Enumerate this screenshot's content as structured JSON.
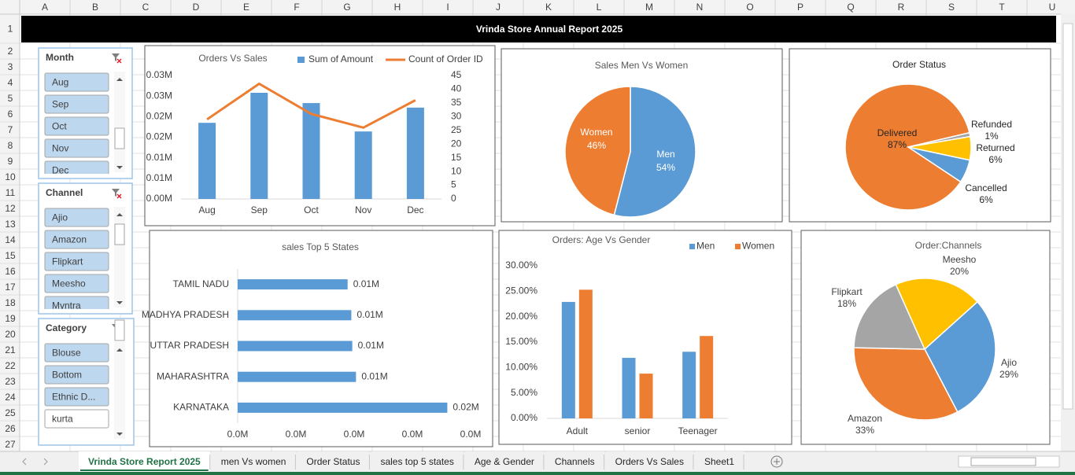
{
  "columns": [
    "A",
    "B",
    "C",
    "D",
    "E",
    "F",
    "G",
    "H",
    "I",
    "J",
    "K",
    "L",
    "M",
    "N",
    "O",
    "P",
    "Q",
    "R",
    "S",
    "T",
    "U"
  ],
  "rows": [
    1,
    2,
    3,
    4,
    5,
    6,
    7,
    8,
    9,
    10,
    11,
    12,
    13,
    14,
    15,
    16,
    17,
    18,
    19,
    20,
    21,
    22,
    23,
    24,
    25,
    26,
    27
  ],
  "title": "Vrinda Store Annual Report 2025",
  "slicers": [
    {
      "title": "Month",
      "items": [
        "Aug",
        "Sep",
        "Oct",
        "Nov",
        "Dec"
      ],
      "selected": [
        true,
        true,
        true,
        true,
        true
      ]
    },
    {
      "title": "Channel",
      "items": [
        "Ajio",
        "Amazon",
        "Flipkart",
        "Meesho",
        "Myntra"
      ],
      "selected": [
        true,
        true,
        true,
        true,
        true
      ]
    },
    {
      "title": "Category",
      "items": [
        "Blouse",
        "Bottom",
        "Ethnic D...",
        "kurta"
      ],
      "selected": [
        true,
        true,
        true,
        false
      ]
    }
  ],
  "chart_data": [
    {
      "type": "combo",
      "title": "Orders Vs Sales",
      "categories": [
        "Aug",
        "Sep",
        "Oct",
        "Nov",
        "Dec"
      ],
      "series": [
        {
          "name": "Sum of Amount",
          "type": "bar",
          "color": "#5b9bd5",
          "values": [
            18500,
            25800,
            23300,
            16400,
            22200
          ]
        },
        {
          "name": "Count of Order ID",
          "type": "line",
          "axis": "y2",
          "color": "#ed7d31",
          "values": [
            29,
            42,
            31,
            26,
            36
          ]
        }
      ],
      "ylim": [
        0,
        30000
      ],
      "yticks": [
        {
          "value": 0,
          "label": "0.00M"
        },
        {
          "value": 5000,
          "label": "0.01M"
        },
        {
          "value": 10000,
          "label": "0.01M"
        },
        {
          "value": 15000,
          "label": "0.02M"
        },
        {
          "value": 20000,
          "label": "0.02M"
        },
        {
          "value": 25000,
          "label": "0.03M"
        },
        {
          "value": 30000,
          "label": "0.03M"
        }
      ],
      "y2lim": [
        0,
        45
      ],
      "y2ticks": [
        0,
        5,
        10,
        15,
        20,
        25,
        30,
        35,
        40,
        45
      ]
    },
    {
      "type": "pie",
      "title": "Sales Men Vs Women",
      "categories": [
        "Men",
        "Women"
      ],
      "values": [
        54,
        46
      ],
      "value_labels": [
        "54%",
        "46%"
      ],
      "colors": [
        "#5b9bd5",
        "#ed7d31"
      ]
    },
    {
      "type": "pie",
      "title": "Order Status",
      "categories": [
        "Cancelled",
        "Delivered",
        "Refunded",
        "Returned"
      ],
      "values": [
        6,
        87,
        1,
        6
      ],
      "value_labels": [
        "6%",
        "87%",
        "1%",
        "6%"
      ],
      "colors": [
        "#5b9bd5",
        "#ed7d31",
        "#a5a5a5",
        "#ffc000"
      ]
    },
    {
      "type": "hbar",
      "title": "sales Top 5 States",
      "categories": [
        "TAMIL NADU",
        "MADHYA PRADESH",
        "UTTAR PRADESH",
        "MAHARASHTRA",
        "KARNATAKA"
      ],
      "values": [
        11800,
        12200,
        12300,
        12700,
        22500
      ],
      "value_labels": [
        "0.01M",
        "0.01M",
        "0.01M",
        "0.01M",
        "0.02M"
      ],
      "color": "#5b9bd5",
      "xlim": [
        0,
        25000
      ],
      "xticks": [
        {
          "value": 0,
          "label": "0.0M"
        },
        {
          "value": 6250,
          "label": "0.0M"
        },
        {
          "value": 12500,
          "label": "0.0M"
        },
        {
          "value": 18750,
          "label": "0.0M"
        },
        {
          "value": 25000,
          "label": "0.0M"
        }
      ]
    },
    {
      "type": "bar",
      "title": "Orders: Age Vs Gender",
      "categories": [
        "Adult",
        "senior",
        "Teenager"
      ],
      "series": [
        {
          "name": "Men",
          "color": "#5b9bd5",
          "values": [
            22.9,
            11.9,
            13.1
          ]
        },
        {
          "name": "Women",
          "color": "#ed7d31",
          "values": [
            25.3,
            8.8,
            16.2
          ]
        }
      ],
      "ylim": [
        0,
        30
      ],
      "yticks": [
        {
          "value": 0,
          "label": "0.00%"
        },
        {
          "value": 5,
          "label": "5.00%"
        },
        {
          "value": 10,
          "label": "10.00%"
        },
        {
          "value": 15,
          "label": "15.00%"
        },
        {
          "value": 20,
          "label": "20.00%"
        },
        {
          "value": 25,
          "label": "25.00%"
        },
        {
          "value": 30,
          "label": "30.00%"
        }
      ]
    },
    {
      "type": "pie",
      "title": "Order:Channels",
      "categories": [
        "Ajio",
        "Amazon",
        "Flipkart",
        "Meesho"
      ],
      "values": [
        29,
        33,
        18,
        20
      ],
      "value_labels": [
        "29%",
        "33%",
        "18%",
        "20%"
      ],
      "colors": [
        "#5b9bd5",
        "#ed7d31",
        "#a5a5a5",
        "#ffc000"
      ]
    }
  ],
  "tabs": [
    "Vrinda Store Report 2025",
    "men Vs women",
    "Order Status",
    "sales top 5 states",
    "Age & Gender",
    "Channels",
    "Orders Vs Sales",
    "Sheet1"
  ],
  "active_tab": 0
}
